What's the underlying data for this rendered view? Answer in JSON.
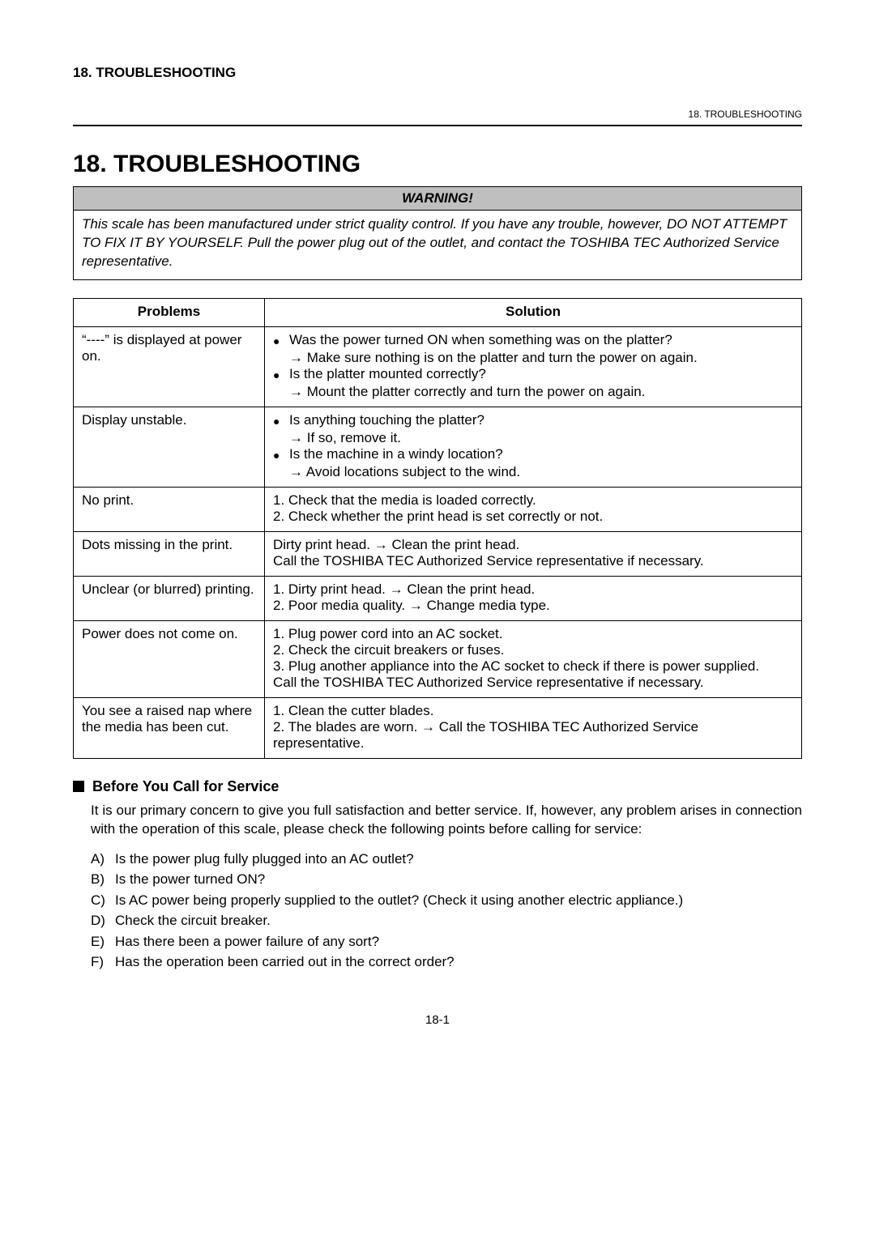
{
  "top_header": "18. TROUBLESHOOTING",
  "small_header": "18.  TROUBLESHOOTING",
  "main_title": "18.  TROUBLESHOOTING",
  "warning": {
    "title": "WARNING!",
    "body": "This scale has been manufactured under strict quality control.  If you have any trouble, however, DO NOT ATTEMPT TO FIX IT BY YOURSELF.  Pull the power plug out of the outlet, and contact the TOSHIBA TEC Authorized Service representative."
  },
  "table": {
    "headers": {
      "problems": "Problems",
      "solution": "Solution"
    },
    "rows": [
      {
        "problem": "“----” is displayed at power on.",
        "solution_bullets": [
          {
            "q": "Was the power turned ON when something was on the platter?",
            "a": "→ Make sure nothing is on the platter and turn the power on again."
          },
          {
            "q": "Is the platter mounted correctly?",
            "a": "→ Mount the platter correctly and turn the power on again."
          }
        ]
      },
      {
        "problem": "Display unstable.",
        "solution_bullets": [
          {
            "q": "Is anything touching the platter?",
            "a": "→ If so, remove it."
          },
          {
            "q": "Is the machine in a windy location?",
            "a": "→ Avoid locations subject to the wind."
          }
        ]
      },
      {
        "problem": "No print.",
        "solution_lines": [
          "1.  Check that the media is loaded correctly.",
          "2.  Check whether the print head is set correctly or not."
        ]
      },
      {
        "problem": "Dots missing in the print.",
        "solution_lines": [
          "Dirty print head. → Clean the print head.",
          "Call the TOSHIBA TEC Authorized Service representative if necessary."
        ]
      },
      {
        "problem": "Unclear (or blurred) printing.",
        "solution_lines": [
          "1.  Dirty print head. → Clean the print head.",
          "2.  Poor media quality. → Change media type."
        ]
      },
      {
        "problem": "Power does not come on.",
        "solution_lines": [
          "1.  Plug power cord into an AC socket.",
          "2.  Check the circuit breakers or fuses.",
          "3.  Plug another appliance into the AC socket to check if there is power supplied.",
          "Call the TOSHIBA TEC Authorized Service representative if necessary."
        ]
      },
      {
        "problem": "You see a raised nap where the media has been cut.",
        "solution_lines": [
          "1.  Clean the cutter blades.",
          "2.  The blades are worn. → Call the TOSHIBA TEC Authorized Service representative."
        ]
      }
    ]
  },
  "before_service": {
    "title": "Before You Call for Service",
    "intro": "It is our primary concern to give you full satisfaction and better service.  If, however, any problem arises in connection with the operation of this scale, please check the following points before calling for service:",
    "items": [
      {
        "label": "A)",
        "text": "Is the power plug fully plugged into an AC outlet?"
      },
      {
        "label": "B)",
        "text": "Is the power turned ON?"
      },
      {
        "label": "C)",
        "text": "Is AC power being properly supplied to the outlet?  (Check it using another electric appliance.)"
      },
      {
        "label": "D)",
        "text": "Check the circuit breaker."
      },
      {
        "label": "E)",
        "text": "Has there been a power failure of any sort?"
      },
      {
        "label": "F)",
        "text": "Has the operation been carried out in the correct order?"
      }
    ]
  },
  "page_number": "18-1"
}
